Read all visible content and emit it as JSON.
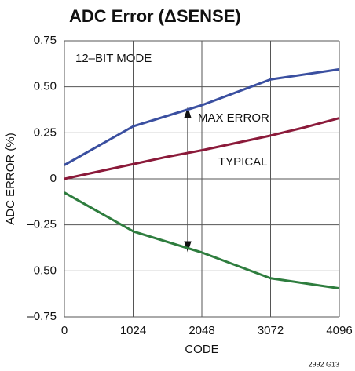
{
  "chart_data": {
    "type": "line",
    "title": "ADC Error (ΔSENSE)",
    "xlabel": "CODE",
    "ylabel": "ADC ERROR (%)",
    "annotations": [
      "12–BIT MODE",
      "MAX ERROR",
      "TYPICAL",
      "2992 G13"
    ],
    "xlim": [
      0,
      4096
    ],
    "xticks": [
      0,
      1024,
      2048,
      3072,
      4096
    ],
    "ylim": [
      -0.75,
      0.75
    ],
    "yticks": [
      {
        "value": 0.75,
        "label": "0.75"
      },
      {
        "value": 0.5,
        "label": "0.50"
      },
      {
        "value": 0.25,
        "label": "0.25"
      },
      0,
      {
        "value": -0.25,
        "label": "–0.25"
      },
      {
        "value": -0.5,
        "label": "–0.50"
      },
      {
        "value": -0.75,
        "label": "–0.75"
      }
    ],
    "grid": true,
    "series": [
      {
        "color": "#3a4fa0",
        "x": [
          0,
          1024,
          2048,
          3072,
          4096
        ],
        "values": [
          0.075,
          0.285,
          0.4,
          0.54,
          0.595
        ]
      },
      {
        "color": "#2e7d3e",
        "x": [
          0,
          1024,
          2048,
          3072,
          4096
        ],
        "values": [
          -0.075,
          -0.285,
          -0.4,
          -0.54,
          -0.595
        ]
      },
      {
        "color": "#8b1a3a",
        "x": [
          0,
          512,
          1024,
          1536,
          2048,
          2560,
          3072,
          3584,
          4096
        ],
        "values": [
          0,
          0.04,
          0.08,
          0.12,
          0.155,
          0.195,
          0.235,
          0.28,
          0.33
        ]
      }
    ]
  }
}
